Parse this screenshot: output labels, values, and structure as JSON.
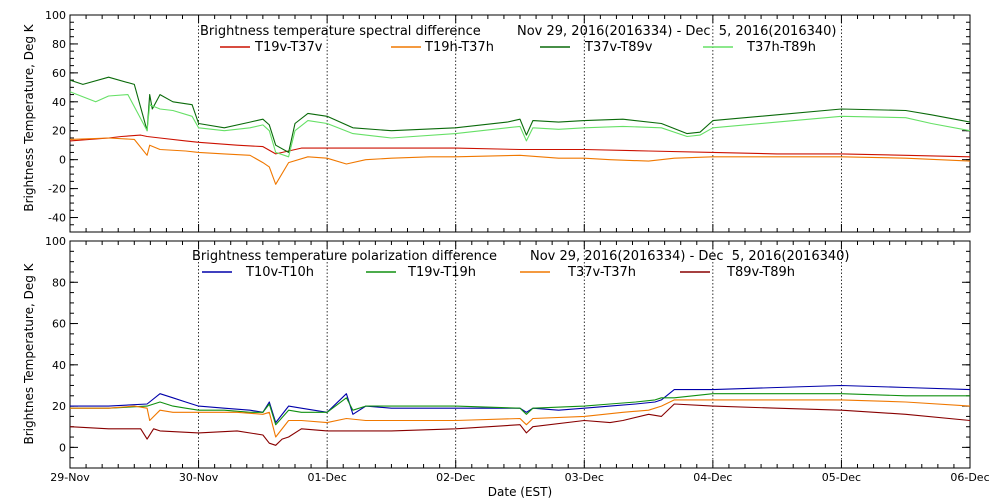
{
  "x_axis": {
    "label": "Date (EST)",
    "ticks": [
      "29-Nov",
      "30-Nov",
      "01-Dec",
      "02-Dec",
      "03-Dec",
      "04-Dec",
      "05-Dec",
      "06-Dec"
    ]
  },
  "chart_data": [
    {
      "type": "line",
      "title": "Brightness temperature spectral difference",
      "date_range": "Nov 29, 2016(2016334) - Dec  5, 2016(2016340)",
      "ylabel": "Brightness Temperature, Deg K",
      "xlabel": "",
      "ylim": [
        -50,
        100
      ],
      "yticks": [
        -40,
        -20,
        0,
        20,
        40,
        60,
        80,
        100
      ],
      "x_unit": "days since 29-Nov",
      "grid": "vertical dotted at each day",
      "legend": "top, inside",
      "series": [
        {
          "name": "T19v-T37v",
          "color": "#cc1100",
          "x": [
            0,
            0.3,
            0.4,
            0.55,
            0.6,
            0.7,
            0.9,
            1.0,
            1.3,
            1.5,
            1.6,
            1.8,
            2.0,
            2.5,
            3.0,
            3.5,
            4.0,
            4.5,
            5.0,
            5.5,
            6.0,
            6.5,
            7.0
          ],
          "y": [
            13,
            15,
            16,
            17,
            16,
            15,
            13,
            12,
            10,
            9,
            4,
            8,
            8,
            8,
            8,
            7,
            7,
            6,
            5,
            4,
            4,
            3,
            2
          ]
        },
        {
          "name": "T19h-T37h",
          "color": "#f07800",
          "x": [
            0,
            0.3,
            0.5,
            0.6,
            0.62,
            0.7,
            0.9,
            1.0,
            1.2,
            1.4,
            1.5,
            1.55,
            1.6,
            1.7,
            1.85,
            2.0,
            2.15,
            2.3,
            2.5,
            2.8,
            3.0,
            3.5,
            3.8,
            4.0,
            4.2,
            4.5,
            4.7,
            5.0,
            5.5,
            6.0,
            6.5,
            7.0
          ],
          "y": [
            14,
            15,
            14,
            3,
            10,
            7,
            6,
            5,
            4,
            3,
            -2,
            -5,
            -17,
            -2,
            2,
            1,
            -3,
            0,
            1,
            2,
            2,
            3,
            1,
            1,
            0,
            -1,
            1,
            2,
            2,
            2,
            1,
            -1
          ]
        },
        {
          "name": "T37v-T89v",
          "color": "#0a6a0a",
          "x": [
            0,
            0.1,
            0.3,
            0.5,
            0.6,
            0.62,
            0.64,
            0.7,
            0.8,
            0.95,
            1.0,
            1.2,
            1.4,
            1.5,
            1.55,
            1.6,
            1.7,
            1.75,
            1.85,
            2.0,
            2.2,
            2.5,
            3.0,
            3.2,
            3.4,
            3.5,
            3.55,
            3.6,
            3.8,
            4.0,
            4.3,
            4.6,
            4.8,
            4.9,
            5.0,
            5.5,
            6.0,
            6.5,
            6.7,
            7.0
          ],
          "y": [
            55,
            52,
            57,
            52,
            20,
            45,
            35,
            45,
            40,
            38,
            25,
            22,
            26,
            28,
            24,
            10,
            5,
            25,
            32,
            30,
            22,
            20,
            22,
            24,
            26,
            28,
            17,
            27,
            26,
            27,
            28,
            25,
            18,
            19,
            27,
            31,
            35,
            34,
            31,
            26
          ]
        },
        {
          "name": "T37h-T89h",
          "color": "#66e066",
          "x": [
            0,
            0.2,
            0.3,
            0.45,
            0.6,
            0.62,
            0.7,
            0.8,
            0.95,
            1.0,
            1.2,
            1.4,
            1.5,
            1.55,
            1.6,
            1.7,
            1.75,
            1.85,
            2.0,
            2.2,
            2.5,
            3.0,
            3.2,
            3.4,
            3.5,
            3.55,
            3.6,
            3.8,
            4.0,
            4.3,
            4.6,
            4.8,
            4.9,
            5.0,
            5.5,
            6.0,
            6.5,
            6.7,
            7.0
          ],
          "y": [
            47,
            40,
            44,
            45,
            20,
            38,
            35,
            34,
            30,
            22,
            20,
            22,
            24,
            20,
            5,
            2,
            20,
            27,
            25,
            18,
            15,
            18,
            20,
            22,
            23,
            13,
            22,
            21,
            22,
            23,
            22,
            16,
            17,
            22,
            26,
            30,
            29,
            25,
            20
          ]
        }
      ]
    },
    {
      "type": "line",
      "title": "Brightness temperature polarization difference",
      "date_range": "Nov 29, 2016(2016334) - Dec  5, 2016(2016340)",
      "ylabel": "Brightnes Temperature, Deg K",
      "xlabel": "Date (EST)",
      "ylim": [
        -10,
        100
      ],
      "yticks": [
        0,
        20,
        40,
        60,
        80,
        100
      ],
      "x_unit": "days since 29-Nov",
      "grid": "vertical dotted at each day",
      "legend": "top, inside",
      "series": [
        {
          "name": "T10v-T10h",
          "color": "#0000aa",
          "x": [
            0,
            0.3,
            0.6,
            0.7,
            0.8,
            0.9,
            1.0,
            1.2,
            1.4,
            1.5,
            1.55,
            1.6,
            1.7,
            1.8,
            2.0,
            2.15,
            2.2,
            2.3,
            2.5,
            3.0,
            3.5,
            3.55,
            3.6,
            3.8,
            4.0,
            4.2,
            4.4,
            4.55,
            4.6,
            4.7,
            5.0,
            5.5,
            6.0,
            6.5,
            7.0
          ],
          "y": [
            20,
            20,
            21,
            26,
            24,
            22,
            20,
            19,
            18,
            17,
            22,
            12,
            20,
            19,
            17,
            26,
            16,
            20,
            19,
            19,
            19,
            17,
            19,
            18,
            19,
            20,
            21,
            22,
            23,
            28,
            28,
            29,
            30,
            29,
            28
          ]
        },
        {
          "name": "T19v-T19h",
          "color": "#109010",
          "x": [
            0,
            0.3,
            0.6,
            0.7,
            0.8,
            0.9,
            1.0,
            1.2,
            1.4,
            1.5,
            1.55,
            1.6,
            1.7,
            1.8,
            2.0,
            2.15,
            2.2,
            2.3,
            2.5,
            3.0,
            3.5,
            3.55,
            3.6,
            4.0,
            4.2,
            4.4,
            4.55,
            4.6,
            4.7,
            5.0,
            5.5,
            6.0,
            6.5,
            7.0
          ],
          "y": [
            19,
            19,
            20,
            22,
            20,
            19,
            18,
            18,
            17,
            17,
            21,
            11,
            18,
            17,
            17,
            24,
            18,
            20,
            20,
            20,
            19,
            16,
            19,
            20,
            21,
            22,
            23,
            24,
            24,
            26,
            26,
            26,
            25,
            25
          ]
        },
        {
          "name": "T37v-T37h",
          "color": "#f07800",
          "x": [
            0,
            0.3,
            0.5,
            0.6,
            0.62,
            0.7,
            0.8,
            1.0,
            1.3,
            1.5,
            1.55,
            1.6,
            1.7,
            1.8,
            2.0,
            2.15,
            2.3,
            2.5,
            3.0,
            3.5,
            3.55,
            3.6,
            4.0,
            4.3,
            4.5,
            4.6,
            4.7,
            5.0,
            5.5,
            6.0,
            6.5,
            7.0
          ],
          "y": [
            19,
            19,
            20,
            19,
            13,
            18,
            17,
            17,
            17,
            16,
            17,
            5,
            13,
            13,
            12,
            14,
            13,
            13,
            13,
            14,
            11,
            14,
            15,
            17,
            18,
            20,
            23,
            23,
            23,
            23,
            22,
            20
          ]
        },
        {
          "name": "T89v-T89h",
          "color": "#880000",
          "x": [
            0,
            0.3,
            0.55,
            0.6,
            0.65,
            0.7,
            1.0,
            1.3,
            1.5,
            1.55,
            1.6,
            1.65,
            1.7,
            1.8,
            2.0,
            2.5,
            3.0,
            3.5,
            3.55,
            3.6,
            4.0,
            4.2,
            4.3,
            4.5,
            4.6,
            4.7,
            5.0,
            5.5,
            6.0,
            6.5,
            7.0
          ],
          "y": [
            10,
            9,
            9,
            4,
            9,
            8,
            7,
            8,
            6,
            2,
            1,
            4,
            5,
            9,
            8,
            8,
            9,
            11,
            7,
            10,
            13,
            12,
            13,
            16,
            15,
            21,
            20,
            19,
            18,
            16,
            13
          ]
        }
      ]
    }
  ]
}
